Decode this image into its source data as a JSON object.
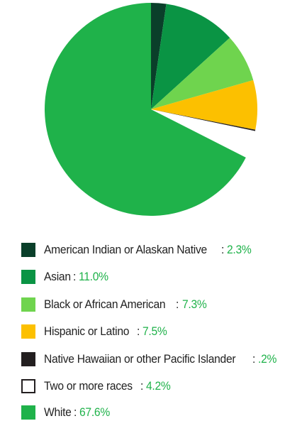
{
  "chart_data": {
    "type": "pie",
    "title": "",
    "slices": [
      {
        "label": "American Indian or Alaskan Native",
        "value": 2.3,
        "display": "2.3%",
        "color": "#0a3f2a",
        "border": "none"
      },
      {
        "label": "Asian",
        "value": 11.0,
        "display": "11.0%",
        "color": "#0a9444",
        "border": "none"
      },
      {
        "label": "Black or African American",
        "value": 7.3,
        "display": "7.3%",
        "color": "#6fd44e",
        "border": "none"
      },
      {
        "label": "Hispanic or Latino",
        "value": 7.5,
        "display": "7.5%",
        "color": "#fcc000",
        "border": "none"
      },
      {
        "label": "Native Hawaiian or other Pacific Islander",
        "value": 0.2,
        "display": ".2%",
        "color": "#231f20",
        "border": "none"
      },
      {
        "label": "Two or more races",
        "value": 4.2,
        "display": "4.2%",
        "color": "#ffffff",
        "border": "#231f20"
      },
      {
        "label": "White",
        "value": 67.6,
        "display": "67.6%",
        "color": "#1fb24a",
        "border": "none"
      }
    ],
    "legend_position": "bottom",
    "value_text_color": "#1fb24a"
  }
}
